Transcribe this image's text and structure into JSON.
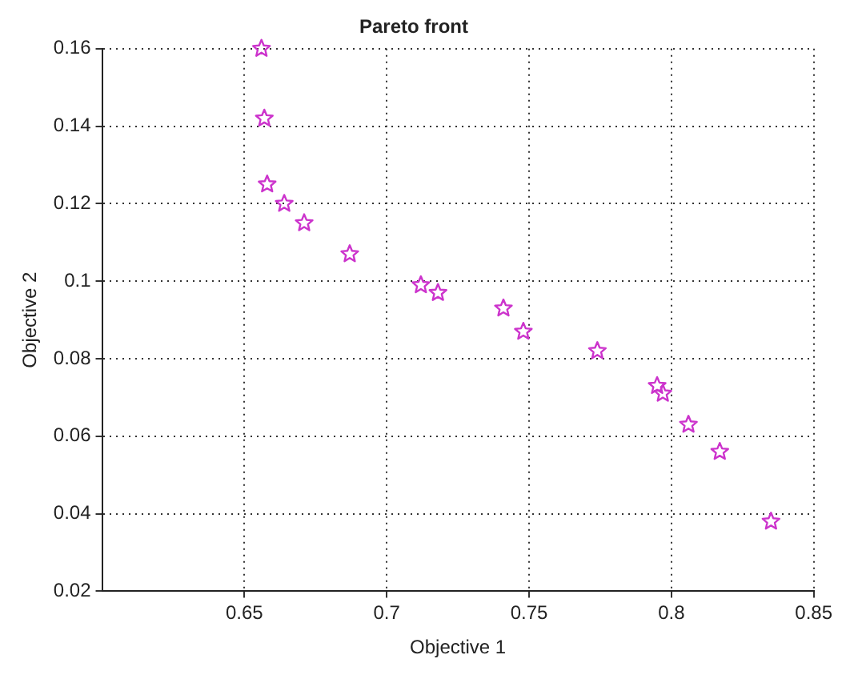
{
  "chart_data": {
    "type": "scatter",
    "title": "Pareto front",
    "xlabel": "Objective 1",
    "ylabel": "Objective 2",
    "marker": "star",
    "grid": true,
    "legend": false,
    "xlim": [
      0.6,
      0.85
    ],
    "xticks": [
      0.65,
      0.7,
      0.75,
      0.8,
      0.85
    ],
    "ylim": [
      0.02,
      0.16
    ],
    "yticks": [
      0.02,
      0.04,
      0.06,
      0.08,
      0.1,
      0.12,
      0.14,
      0.16
    ],
    "series": [
      {
        "color": "#cc33cc",
        "x": [
          0.656,
          0.657,
          0.658,
          0.664,
          0.671,
          0.687,
          0.712,
          0.718,
          0.741,
          0.748,
          0.774,
          0.795,
          0.797,
          0.806,
          0.817,
          0.835
        ],
        "values": [
          0.16,
          0.142,
          0.125,
          0.12,
          0.115,
          0.107,
          0.099,
          0.097,
          0.093,
          0.087,
          0.082,
          0.073,
          0.071,
          0.063,
          0.056,
          0.038
        ]
      }
    ]
  }
}
